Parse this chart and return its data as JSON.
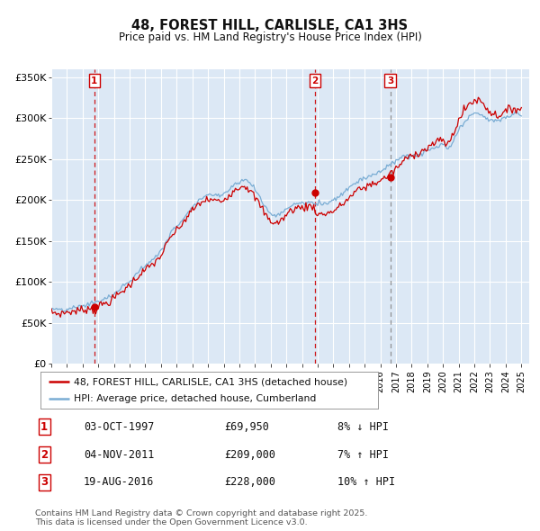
{
  "title": "48, FOREST HILL, CARLISLE, CA1 3HS",
  "subtitle": "Price paid vs. HM Land Registry's House Price Index (HPI)",
  "ylim": [
    0,
    360000
  ],
  "yticks": [
    0,
    50000,
    100000,
    150000,
    200000,
    250000,
    300000,
    350000
  ],
  "ytick_labels": [
    "£0",
    "£50K",
    "£100K",
    "£150K",
    "£200K",
    "£250K",
    "£300K",
    "£350K"
  ],
  "xlim_start": 1995.0,
  "xlim_end": 2025.5,
  "background_color": "#ffffff",
  "plot_bg_color": "#dce8f5",
  "grid_color": "#ffffff",
  "hpi_color": "#7aadd4",
  "price_color": "#cc0000",
  "dashed_line_color_red": "#cc0000",
  "dashed_line_color_gray": "#888888",
  "legend_label_price": "48, FOREST HILL, CARLISLE, CA1 3HS (detached house)",
  "legend_label_hpi": "HPI: Average price, detached house, Cumberland",
  "transactions": [
    {
      "label": "1",
      "date_str": "03-OCT-1997",
      "date_x": 1997.75,
      "price": 69950,
      "pct": "8% ↓ HPI",
      "dash": "red"
    },
    {
      "label": "2",
      "date_str": "04-NOV-2011",
      "date_x": 2011.83,
      "price": 209000,
      "pct": "7% ↑ HPI",
      "dash": "red"
    },
    {
      "label": "3",
      "date_str": "19-AUG-2016",
      "date_x": 2016.63,
      "price": 228000,
      "pct": "10% ↑ HPI",
      "dash": "gray"
    }
  ],
  "footer_text": "Contains HM Land Registry data © Crown copyright and database right 2025.\nThis data is licensed under the Open Government Licence v3.0."
}
